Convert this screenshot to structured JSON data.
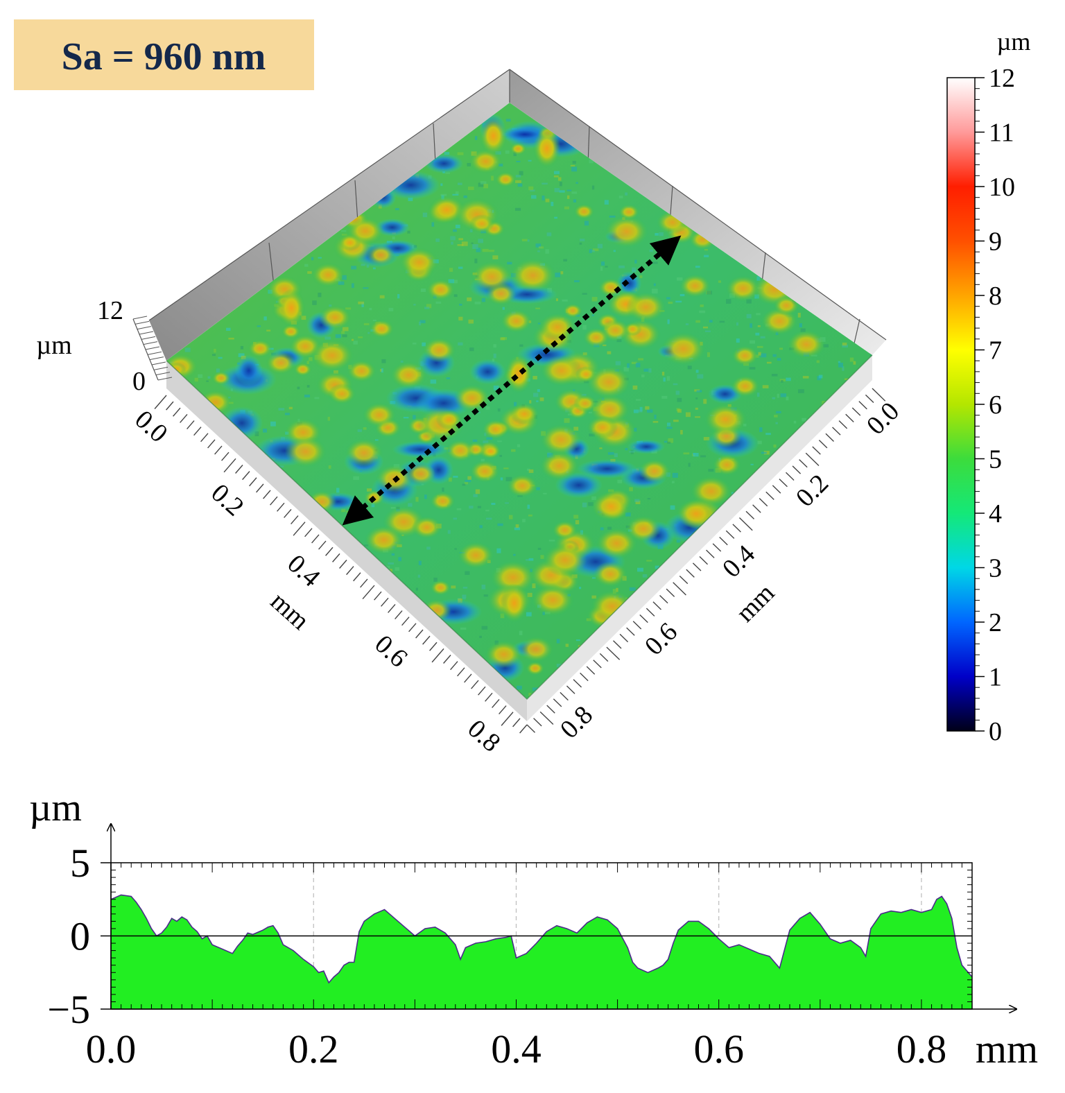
{
  "badge": {
    "text": "Sa = 960 nm",
    "bg": "#f7d99b",
    "color": "#14284b"
  },
  "surface3d": {
    "type": "surface",
    "title": "",
    "z_axis": {
      "label": "µm",
      "ticks": [
        "12",
        "0"
      ]
    },
    "x_axis": {
      "label": "mm",
      "ticks": [
        "0.0",
        "0.2",
        "0.4",
        "0.6",
        "0.8"
      ]
    },
    "y_axis": {
      "label": "mm",
      "ticks": [
        "0.0",
        "0.2",
        "0.4",
        "0.6",
        "0.8"
      ]
    },
    "profile_line": {
      "description_arrow": "double",
      "style": "dotted"
    }
  },
  "colorbar": {
    "unit": "µm",
    "ticks": [
      "0",
      "1",
      "2",
      "3",
      "4",
      "5",
      "6",
      "7",
      "8",
      "9",
      "10",
      "11",
      "12"
    ],
    "range": [
      0,
      12
    ],
    "stops": [
      "#000018",
      "#0000c8",
      "#0066ff",
      "#00d7e6",
      "#14e878",
      "#3cdc3c",
      "#b4e600",
      "#ffff00",
      "#ffa500",
      "#ff5000",
      "#ff1e00",
      "#ff9a9a",
      "#ffffff"
    ]
  },
  "chart_data": {
    "type": "area",
    "title": "",
    "xlabel": "mm",
    "ylabel": "µm",
    "xlim": [
      0,
      0.85
    ],
    "ylim": [
      -5,
      5
    ],
    "x_ticks": [
      "0.0",
      "0.2",
      "0.4",
      "0.6",
      "0.8"
    ],
    "x_tick_values": [
      0,
      0.2,
      0.4,
      0.6,
      0.8
    ],
    "y_ticks": [
      "5",
      "0",
      "−5"
    ],
    "y_tick_values": [
      5,
      0,
      -5
    ],
    "fill": "#22ee22",
    "line": "#4a2a8a",
    "x": [
      0.0,
      0.01,
      0.02,
      0.025,
      0.03,
      0.035,
      0.04,
      0.045,
      0.05,
      0.055,
      0.06,
      0.065,
      0.07,
      0.075,
      0.08,
      0.085,
      0.09,
      0.095,
      0.1,
      0.11,
      0.12,
      0.125,
      0.13,
      0.135,
      0.14,
      0.15,
      0.155,
      0.16,
      0.165,
      0.17,
      0.18,
      0.19,
      0.2,
      0.205,
      0.21,
      0.215,
      0.22,
      0.225,
      0.23,
      0.235,
      0.24,
      0.245,
      0.25,
      0.26,
      0.27,
      0.28,
      0.29,
      0.3,
      0.31,
      0.32,
      0.33,
      0.34,
      0.345,
      0.35,
      0.36,
      0.37,
      0.38,
      0.39,
      0.395,
      0.4,
      0.41,
      0.42,
      0.43,
      0.44,
      0.45,
      0.46,
      0.47,
      0.48,
      0.49,
      0.5,
      0.51,
      0.515,
      0.52,
      0.53,
      0.54,
      0.545,
      0.55,
      0.555,
      0.56,
      0.57,
      0.58,
      0.59,
      0.6,
      0.61,
      0.62,
      0.63,
      0.64,
      0.65,
      0.66,
      0.67,
      0.68,
      0.69,
      0.7,
      0.71,
      0.72,
      0.73,
      0.74,
      0.745,
      0.75,
      0.76,
      0.77,
      0.78,
      0.79,
      0.8,
      0.81,
      0.815,
      0.82,
      0.825,
      0.83,
      0.835,
      0.84,
      0.85
    ],
    "y": [
      2.5,
      2.8,
      2.7,
      2.3,
      1.8,
      1.2,
      0.5,
      0.0,
      0.2,
      0.6,
      1.2,
      1.0,
      1.3,
      1.1,
      0.6,
      0.3,
      -0.2,
      0.0,
      -0.6,
      -0.9,
      -1.2,
      -0.7,
      -0.3,
      0.2,
      0.1,
      0.4,
      0.6,
      0.7,
      0.2,
      -0.6,
      -1.0,
      -1.6,
      -2.1,
      -2.5,
      -2.4,
      -3.2,
      -2.8,
      -2.5,
      -2.0,
      -1.8,
      -1.8,
      0.3,
      1.0,
      1.5,
      1.8,
      1.2,
      0.6,
      0.0,
      0.5,
      0.6,
      0.2,
      -0.6,
      -1.6,
      -0.8,
      -0.5,
      -0.4,
      -0.2,
      -0.1,
      0.0,
      -1.5,
      -1.2,
      -0.5,
      0.3,
      0.7,
      0.5,
      0.2,
      0.9,
      1.3,
      1.1,
      0.5,
      -0.8,
      -1.8,
      -2.2,
      -2.5,
      -2.2,
      -2.0,
      -1.6,
      -0.5,
      0.4,
      1.0,
      1.0,
      0.5,
      -0.2,
      -0.8,
      -0.6,
      -0.9,
      -1.2,
      -1.4,
      -2.2,
      0.4,
      1.2,
      1.6,
      0.8,
      -0.2,
      -0.5,
      -0.3,
      -0.8,
      -1.4,
      0.5,
      1.5,
      1.7,
      1.6,
      1.8,
      1.6,
      1.8,
      2.5,
      2.7,
      2.2,
      1.2,
      -0.8,
      -2.0,
      -2.8
    ]
  }
}
